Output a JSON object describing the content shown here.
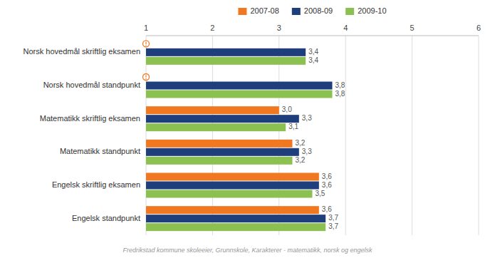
{
  "chart_data": {
    "type": "bar",
    "orientation": "horizontal",
    "categories": [
      "Norsk hovedmål skriftlig eksamen",
      "Norsk hovedmål standpunkt",
      "Matematikk skriftlig eksamen",
      "Matematikk standpunkt",
      "Engelsk skriftlig eksamen",
      "Engelsk standpunkt"
    ],
    "series": [
      {
        "name": "2007-08",
        "color": "#f07820",
        "values": [
          null,
          null,
          3.0,
          3.2,
          3.6,
          3.6
        ],
        "value_labels": [
          null,
          null,
          "3,0",
          "3,2",
          "3,6",
          "3,6"
        ]
      },
      {
        "name": "2008-09",
        "color": "#1f3e7c",
        "values": [
          3.4,
          3.8,
          3.3,
          3.3,
          3.6,
          3.7
        ],
        "value_labels": [
          "3,4",
          "3,8",
          "3,3",
          "3,3",
          "3,6",
          "3,7"
        ]
      },
      {
        "name": "2009-10",
        "color": "#8cc152",
        "values": [
          3.4,
          3.8,
          3.1,
          3.2,
          3.5,
          3.7
        ],
        "value_labels": [
          "3,4",
          "3,8",
          "3,1",
          "3,2",
          "3,5",
          "3,7"
        ]
      }
    ],
    "xlim": [
      1,
      6
    ],
    "xticks": [
      1,
      2,
      3,
      4,
      5,
      6
    ],
    "grid": true,
    "legend": "top",
    "data_labels": true,
    "annotations": [
      "Fredrikstad kommune skoleeier, Grunnskole, Karakterer - matematikk, norsk og engelsk"
    ]
  }
}
